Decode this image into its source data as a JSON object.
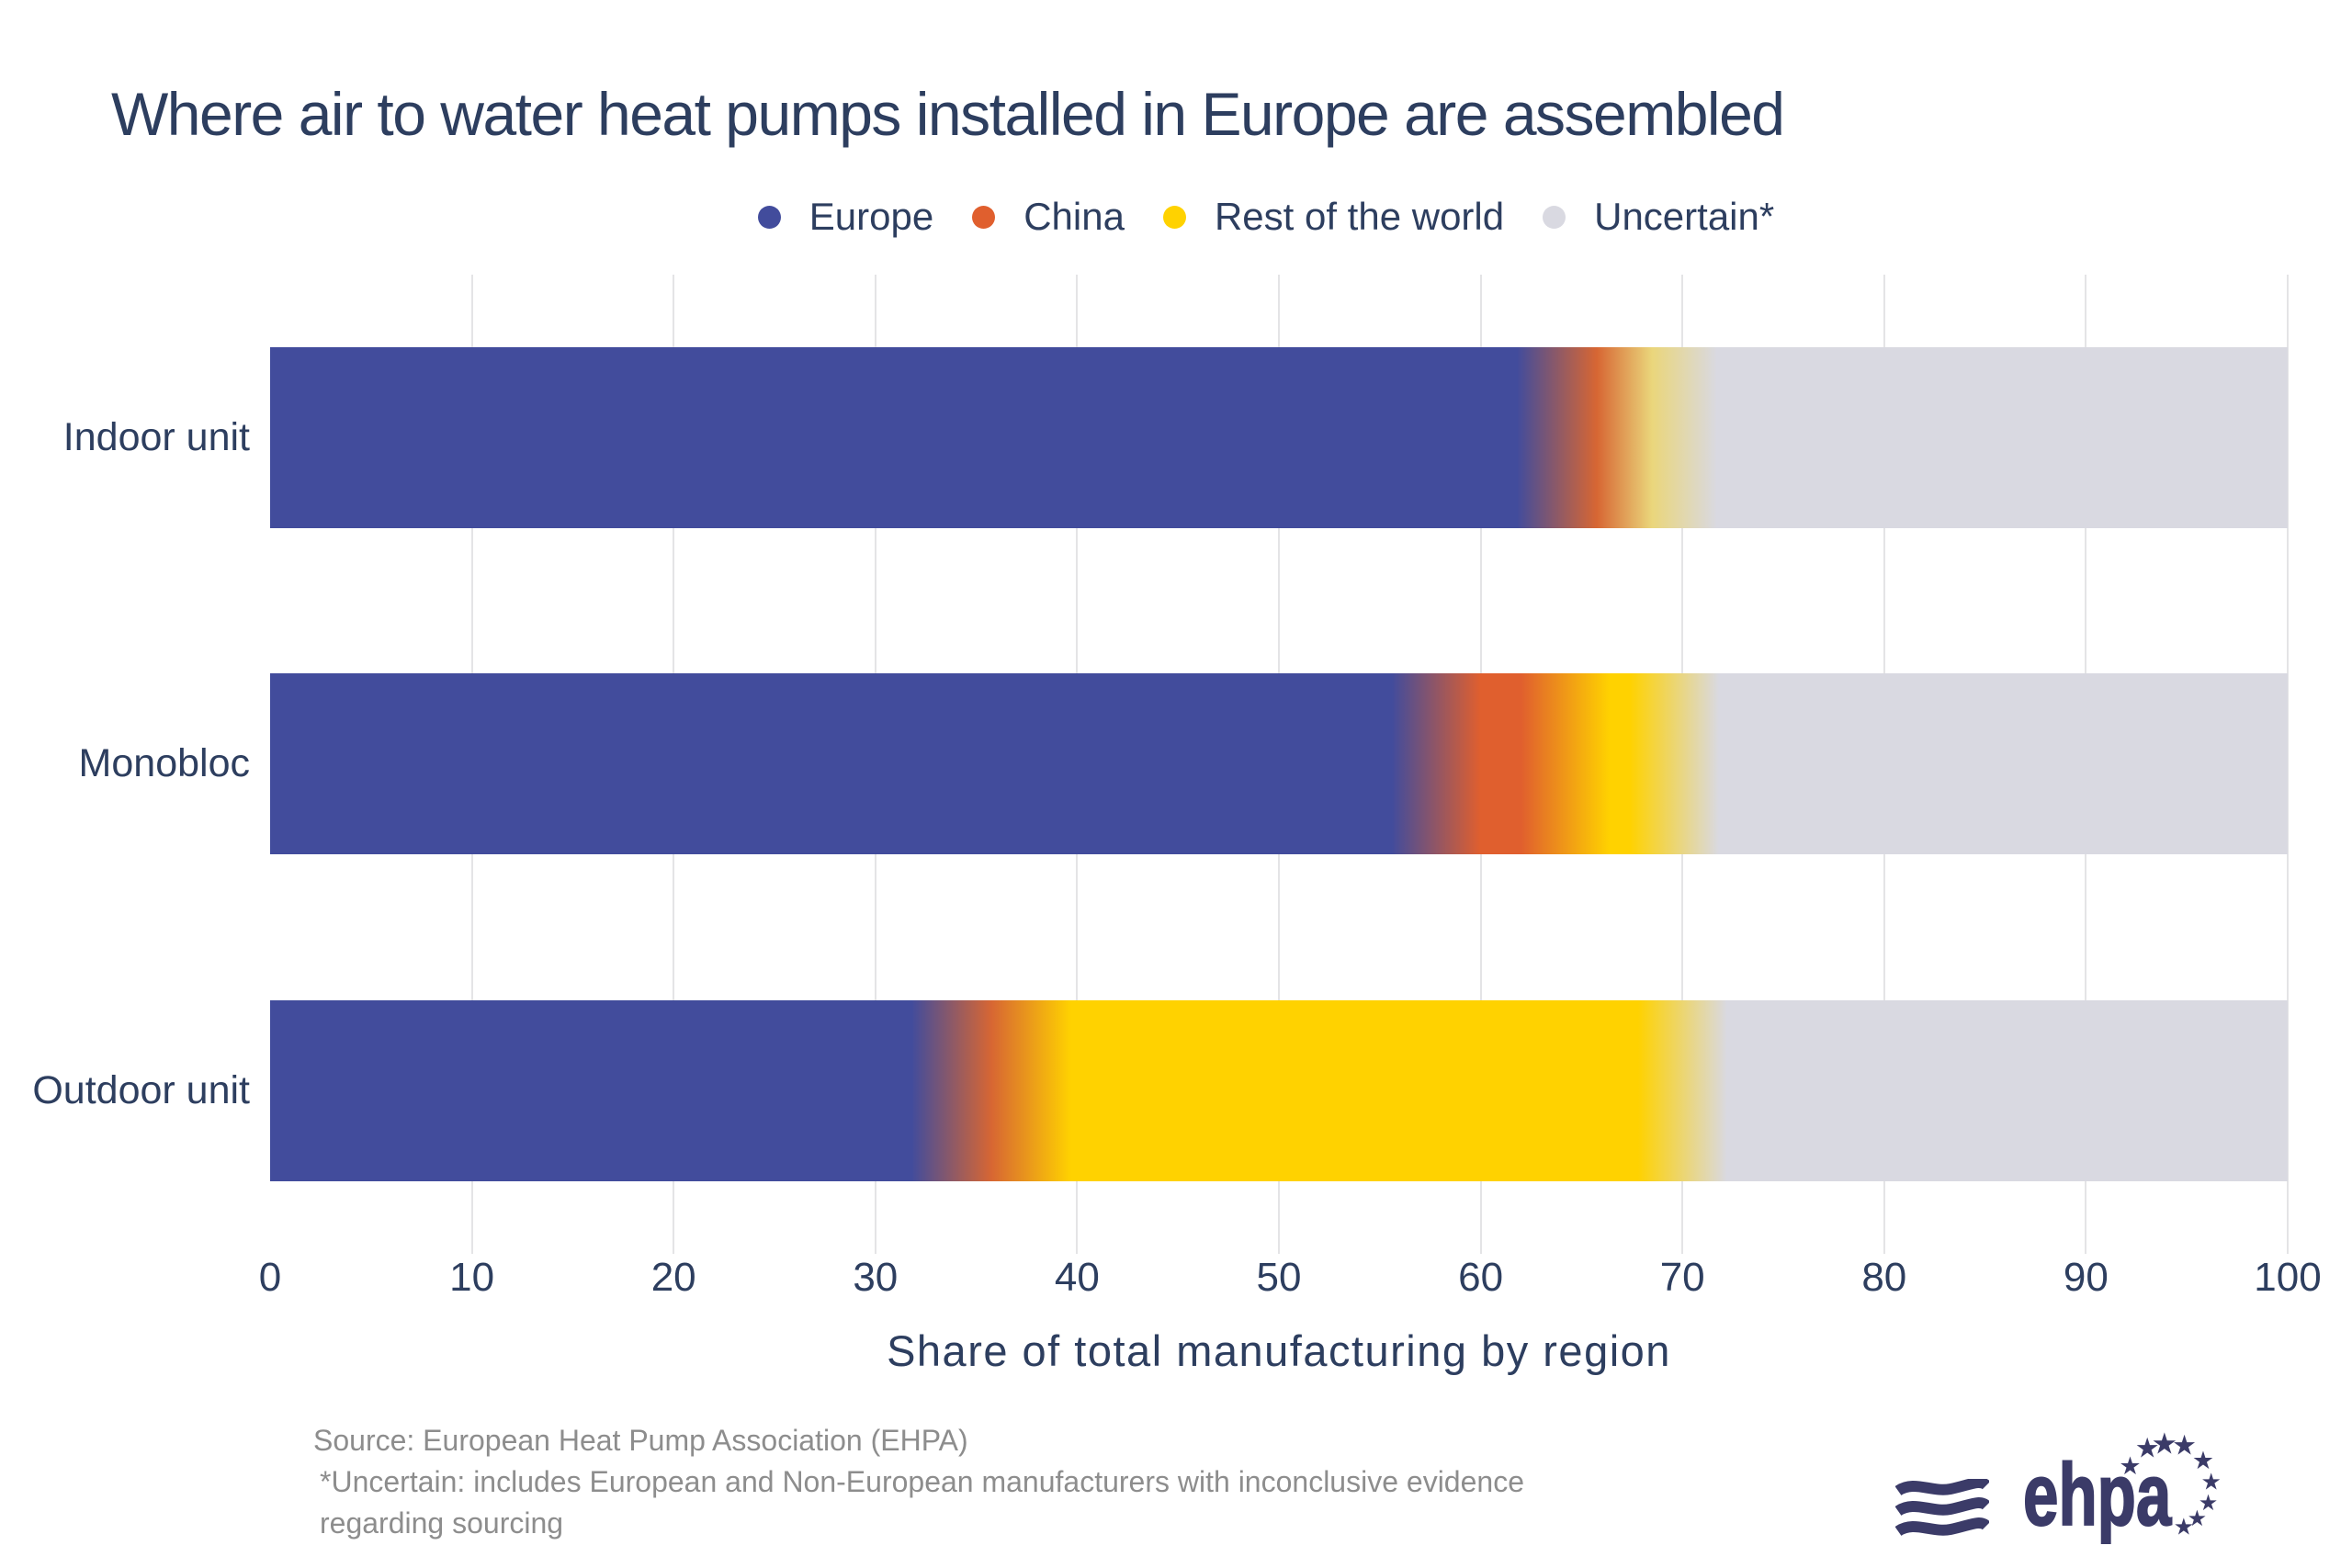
{
  "title": "Where air to water heat pumps installed in Europe are assembled",
  "legend": [
    {
      "label": "Europe",
      "color": "#424c9c"
    },
    {
      "label": "China",
      "color": "#e05f2e"
    },
    {
      "label": "Rest of the world",
      "color": "#ffd200"
    },
    {
      "label": "Uncertain*",
      "color": "#d9d9e1"
    }
  ],
  "chart_data": {
    "type": "bar",
    "orientation": "horizontal",
    "stacked": true,
    "categories": [
      "Indoor unit",
      "Monobloc",
      "Outdoor unit"
    ],
    "series": [
      {
        "name": "Europe",
        "values": [
          64,
          57.8,
          34
        ]
      },
      {
        "name": "China",
        "values": [
          3.5,
          6.4,
          3.5
        ]
      },
      {
        "name": "Rest of the world",
        "values": [
          2,
          5.4,
          32.5
        ]
      },
      {
        "name": "Uncertain*",
        "values": [
          30.5,
          30.4,
          30
        ]
      }
    ],
    "xlabel": "Share of total manufacturing by region",
    "xlim": [
      0,
      100
    ],
    "xticks": [
      0,
      10,
      20,
      30,
      40,
      50,
      60,
      70,
      80,
      90,
      100
    ],
    "grid": true,
    "legend_position": "top"
  },
  "footer": {
    "source": "Source: European Heat Pump Association (EHPA)",
    "note": "*Uncertain: includes European and Non-European manufacturers with inconclusive evidence regarding sourcing"
  },
  "logo": {
    "text": "ehpa"
  }
}
